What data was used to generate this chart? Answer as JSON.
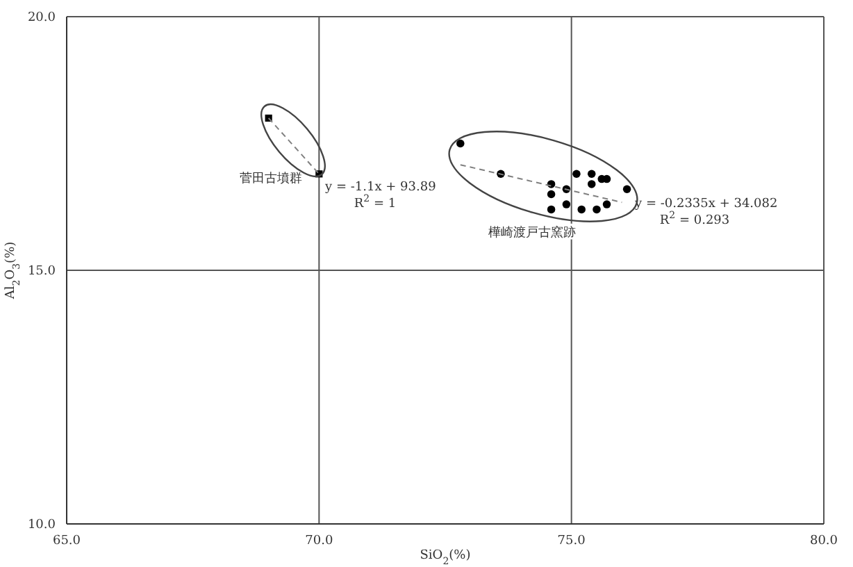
{
  "chart_data": {
    "type": "scatter",
    "xlabel": "SiO$_{2}$(%)",
    "ylabel": "Al$_{2}$O$_{3}$(%)",
    "xlim": [
      65,
      80
    ],
    "xticks": [
      {
        "value": 65,
        "label": "65.0"
      },
      {
        "value": 70,
        "label": "70.0"
      },
      {
        "value": 75,
        "label": "75.0"
      },
      {
        "value": 80,
        "label": "80.0"
      }
    ],
    "ylim": [
      10,
      20
    ],
    "yticks": [
      {
        "value": 10,
        "label": "10.0"
      },
      {
        "value": 15,
        "label": "15.0"
      },
      {
        "value": 20,
        "label": "20.0"
      }
    ],
    "grid": true,
    "legend": false,
    "series": [
      {
        "type": "scatter",
        "marker": "square",
        "color": "#000000",
        "x": [
          69.0,
          70.0
        ],
        "values": [
          18.0,
          16.9
        ]
      },
      {
        "type": "scatter",
        "marker": "circle",
        "color": "#000000",
        "x": [
          72.8,
          73.6,
          74.6,
          74.9,
          74.6,
          74.6,
          74.9,
          75.1,
          75.4,
          75.4,
          75.6,
          75.7,
          75.2,
          75.5,
          75.7,
          76.1
        ],
        "values": [
          17.5,
          16.9,
          16.7,
          16.6,
          16.5,
          16.2,
          16.3,
          16.9,
          16.9,
          16.7,
          16.8,
          16.8,
          16.2,
          16.2,
          16.3,
          16.6
        ]
      },
      {
        "type": "line",
        "line_style": "dashed",
        "color": "#808080",
        "x": [
          69.0,
          70.0
        ],
        "values": [
          18.0,
          16.9
        ]
      },
      {
        "type": "line",
        "line_style": "dashed",
        "color": "#808080",
        "x": [
          72.8,
          76.0
        ],
        "values": [
          17.08,
          16.34
        ]
      }
    ],
    "annotations": [
      "菅田古墳群",
      "y = -1.1x + 93.89",
      "R$^{2}$ = 1",
      "y = -0.2335x + 34.082",
      "R$^{2}$ = 0.293",
      "樺崎渡戸古窯跡"
    ]
  }
}
